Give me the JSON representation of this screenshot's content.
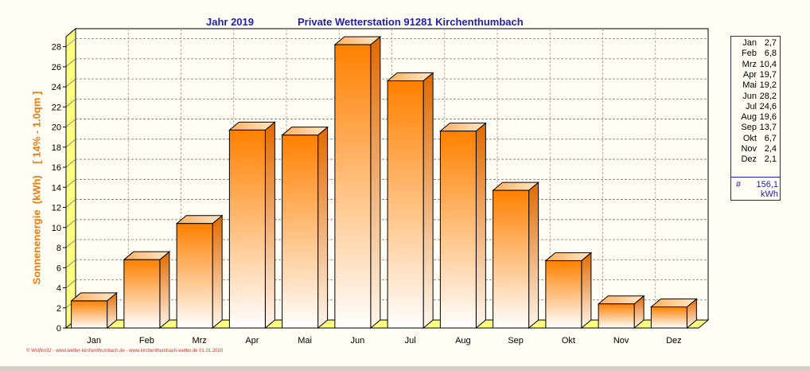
{
  "header": {
    "year_label": "Jahr  2019",
    "station_label": "Private Wetterstation 91281 Kirchenthumbach"
  },
  "axis": {
    "ylabel": "Sonnenenergie  (kWh)    [ 14% - 1.0qm ]"
  },
  "chart_data": {
    "type": "bar",
    "title": "Jahr 2019    Private Wetterstation 91281 Kirchenthumbach",
    "xlabel": "",
    "ylabel": "Sonnenenergie  (kWh)    [ 14% - 1.0qm ]",
    "categories": [
      "Jan",
      "Feb",
      "Mrz",
      "Apr",
      "Mai",
      "Jun",
      "Jul",
      "Aug",
      "Sep",
      "Okt",
      "Nov",
      "Dez"
    ],
    "values": [
      2.7,
      6.8,
      10.4,
      19.7,
      19.2,
      28.2,
      24.6,
      19.6,
      13.7,
      6.7,
      2.4,
      2.1
    ],
    "ylim": [
      0,
      29
    ],
    "yticks": [
      0,
      2,
      4,
      6,
      8,
      10,
      12,
      14,
      16,
      18,
      20,
      22,
      24,
      26,
      28
    ],
    "grid": true,
    "legend_position": "right",
    "total": "156,1",
    "unit": "kWh"
  },
  "legend": {
    "rows": [
      {
        "month": "Jan",
        "value": "2,7"
      },
      {
        "month": "Feb",
        "value": "6,8"
      },
      {
        "month": "Mrz",
        "value": "10,4"
      },
      {
        "month": "Apr",
        "value": "19,7"
      },
      {
        "month": "Mai",
        "value": "19,2"
      },
      {
        "month": "Jun",
        "value": "28,2"
      },
      {
        "month": "Jul",
        "value": "24,6"
      },
      {
        "month": "Aug",
        "value": "19,6"
      },
      {
        "month": "Sep",
        "value": "13,7"
      },
      {
        "month": "Okt",
        "value": "6,7"
      },
      {
        "month": "Nov",
        "value": "2,4"
      },
      {
        "month": "Dez",
        "value": "2,1"
      }
    ],
    "hash": "#",
    "total": "156,1",
    "unit": "kWh"
  },
  "footer": {
    "text": "© WsWin32 - www.wetter-kirchenthumbach.de - www.kirchenthumbach-wetter.de 01.01.2020"
  },
  "colors": {
    "bar_top": "#FF8000",
    "bar_bottom": "#FFFFFF",
    "title": "#1F1FB4",
    "ylabel": "#EE7C10",
    "floor": "#FFFF80",
    "background": "#FFFDF4"
  }
}
